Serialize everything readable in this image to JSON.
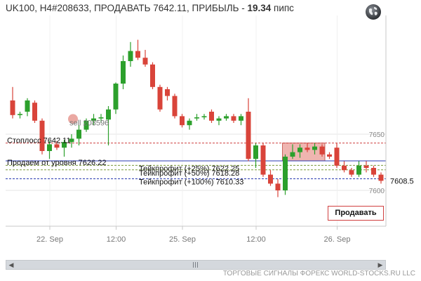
{
  "header": {
    "title_prefix": "UK100, H4#208633, ПРОДАВАТЬ 7642.11, ПРИБЫЛЬ - ",
    "profit": "19.34",
    "unit": " пипс"
  },
  "footer": {
    "text": "ТОРГОВЫЕ СИГНАЛЫ ФОРЕКС WORLD-STOCKS.RU LLC"
  },
  "sell_button": {
    "label": "Продавать"
  },
  "globe_icon": "globe-icon",
  "chart_data": {
    "type": "candlestick",
    "symbol": "UK100",
    "timeframe": "H4",
    "y_ticks": [
      7650,
      7600
    ],
    "x_labels": [
      "22. Sep",
      "12:00",
      "25. Sep",
      "12:00",
      "26. Sep"
    ],
    "current_price": "7608.5",
    "levels": [
      {
        "name": "stoploss",
        "label": "Стоплосс 7642.11",
        "price": 7642.11,
        "color": "#d04040",
        "style": "dashed"
      },
      {
        "name": "entry",
        "label": "Продаем от уровня 7626.22",
        "price": 7626.22,
        "color": "#2a3ab0",
        "style": "solid"
      },
      {
        "name": "tp25",
        "label": "Тейкпрофит (+25%) 7622.25",
        "price": 7622.25,
        "color": "#7a9a3a",
        "style": "dashed"
      },
      {
        "name": "tp50",
        "label": "Тейкпрофит (+50%) 7618.28",
        "price": 7618.28,
        "color": "#7a9a3a",
        "style": "dashed"
      },
      {
        "name": "tp100",
        "label": "Тейкпрофит (+100%) 7610.33",
        "price": 7610.33,
        "color": "#2a3ab0",
        "style": "dashed"
      }
    ],
    "signal_marker": {
      "label": "sell 208596",
      "price": 7661
    },
    "entry_zone": {
      "from_candle": 37,
      "to_candle": 42,
      "low": 7626.22,
      "high": 7642.11
    },
    "colors": {
      "bull": "#2ca02c",
      "bear": "#d9443a"
    },
    "candles": [
      {
        "o": 7680,
        "h": 7692,
        "l": 7664,
        "c": 7667
      },
      {
        "o": 7667,
        "h": 7670,
        "l": 7664,
        "c": 7668
      },
      {
        "o": 7670,
        "h": 7682,
        "l": 7666,
        "c": 7680
      },
      {
        "o": 7678,
        "h": 7680,
        "l": 7660,
        "c": 7662
      },
      {
        "o": 7662,
        "h": 7664,
        "l": 7632,
        "c": 7635
      },
      {
        "o": 7635,
        "h": 7644,
        "l": 7628,
        "c": 7641
      },
      {
        "o": 7641,
        "h": 7644,
        "l": 7636,
        "c": 7638
      },
      {
        "o": 7638,
        "h": 7645,
        "l": 7630,
        "c": 7643
      },
      {
        "o": 7643,
        "h": 7650,
        "l": 7638,
        "c": 7646
      },
      {
        "o": 7646,
        "h": 7658,
        "l": 7640,
        "c": 7654
      },
      {
        "o": 7654,
        "h": 7664,
        "l": 7652,
        "c": 7662
      },
      {
        "o": 7662,
        "h": 7668,
        "l": 7658,
        "c": 7664
      },
      {
        "o": 7664,
        "h": 7668,
        "l": 7660,
        "c": 7665
      },
      {
        "o": 7663,
        "h": 7675,
        "l": 7640,
        "c": 7672
      },
      {
        "o": 7672,
        "h": 7696,
        "l": 7668,
        "c": 7695
      },
      {
        "o": 7695,
        "h": 7720,
        "l": 7690,
        "c": 7715
      },
      {
        "o": 7715,
        "h": 7732,
        "l": 7710,
        "c": 7724
      },
      {
        "o": 7724,
        "h": 7734,
        "l": 7716,
        "c": 7718
      },
      {
        "o": 7718,
        "h": 7725,
        "l": 7710,
        "c": 7712
      },
      {
        "o": 7712,
        "h": 7714,
        "l": 7690,
        "c": 7692
      },
      {
        "o": 7692,
        "h": 7694,
        "l": 7670,
        "c": 7672
      },
      {
        "o": 7690,
        "h": 7692,
        "l": 7680,
        "c": 7684
      },
      {
        "o": 7684,
        "h": 7686,
        "l": 7664,
        "c": 7666
      },
      {
        "o": 7666,
        "h": 7668,
        "l": 7656,
        "c": 7658
      },
      {
        "o": 7658,
        "h": 7664,
        "l": 7654,
        "c": 7662
      },
      {
        "o": 7664,
        "h": 7668,
        "l": 7662,
        "c": 7665
      },
      {
        "o": 7665,
        "h": 7668,
        "l": 7663,
        "c": 7666
      },
      {
        "o": 7670,
        "h": 7672,
        "l": 7660,
        "c": 7662
      },
      {
        "o": 7662,
        "h": 7666,
        "l": 7658,
        "c": 7664
      },
      {
        "o": 7664,
        "h": 7668,
        "l": 7662,
        "c": 7666
      },
      {
        "o": 7666,
        "h": 7668,
        "l": 7660,
        "c": 7662
      },
      {
        "o": 7662,
        "h": 7668,
        "l": 7658,
        "c": 7666
      },
      {
        "o": 7670,
        "h": 7682,
        "l": 7626,
        "c": 7628
      },
      {
        "o": 7628,
        "h": 7642,
        "l": 7620,
        "c": 7640
      },
      {
        "o": 7640,
        "h": 7642,
        "l": 7612,
        "c": 7614
      },
      {
        "o": 7614,
        "h": 7618,
        "l": 7604,
        "c": 7606
      },
      {
        "o": 7606,
        "h": 7610,
        "l": 7594,
        "c": 7600
      },
      {
        "o": 7600,
        "h": 7632,
        "l": 7596,
        "c": 7630
      },
      {
        "o": 7630,
        "h": 7641,
        "l": 7628,
        "c": 7634
      },
      {
        "o": 7634,
        "h": 7641,
        "l": 7629,
        "c": 7638
      },
      {
        "o": 7638,
        "h": 7642,
        "l": 7634,
        "c": 7636
      },
      {
        "o": 7636,
        "h": 7642,
        "l": 7632,
        "c": 7639
      },
      {
        "o": 7639,
        "h": 7641,
        "l": 7630,
        "c": 7632
      },
      {
        "o": 7632,
        "h": 7634,
        "l": 7628,
        "c": 7630
      },
      {
        "o": 7638,
        "h": 7642,
        "l": 7620,
        "c": 7622
      },
      {
        "o": 7622,
        "h": 7626,
        "l": 7616,
        "c": 7618
      },
      {
        "o": 7618,
        "h": 7620,
        "l": 7612,
        "c": 7614
      },
      {
        "o": 7614,
        "h": 7626,
        "l": 7612,
        "c": 7622
      },
      {
        "o": 7622,
        "h": 7626,
        "l": 7616,
        "c": 7620
      },
      {
        "o": 7620,
        "h": 7622,
        "l": 7612,
        "c": 7614
      },
      {
        "o": 7614,
        "h": 7616,
        "l": 7606,
        "c": 7608.5
      }
    ]
  }
}
